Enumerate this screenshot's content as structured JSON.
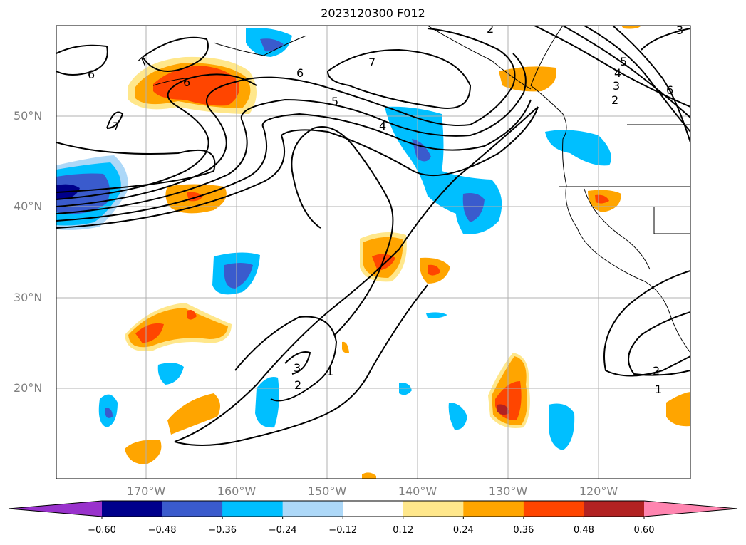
{
  "title": "2023120300 F012",
  "map": {
    "lat_labels": [
      "50°N",
      "40°N",
      "30°N",
      "20°N"
    ],
    "lon_labels": [
      "170°W",
      "160°W",
      "150°W",
      "140°W",
      "130°W",
      "120°W"
    ],
    "contour_labels": [
      "6",
      "7",
      "6",
      "7",
      "6",
      "5",
      "4",
      "7",
      "2",
      "5",
      "4",
      "3",
      "2",
      "6",
      "3",
      "3",
      "2",
      "1",
      "2",
      "1"
    ]
  },
  "colorbar": {
    "ticks": [
      "−0.60",
      "−0.48",
      "−0.36",
      "−0.24",
      "−0.12",
      "0.12",
      "0.24",
      "0.36",
      "0.48",
      "0.60"
    ],
    "colors": [
      "#9932cc",
      "#00008b",
      "#3a5bcd",
      "#00bfff",
      "#add8f8",
      "#ffffff",
      "#ffe78b",
      "#ffa500",
      "#ff4500",
      "#b22222",
      "#ff85b0"
    ]
  }
}
